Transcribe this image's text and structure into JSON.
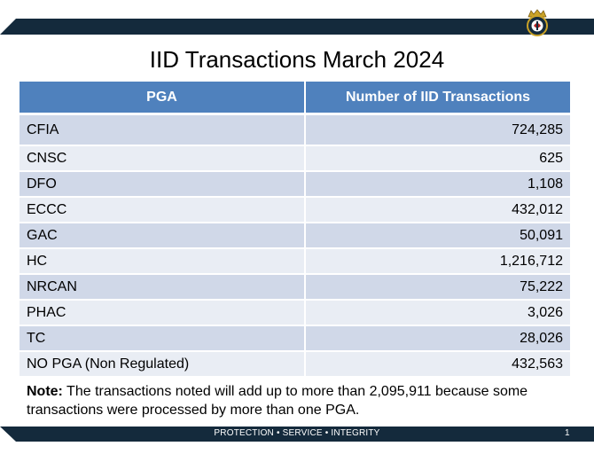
{
  "title": "IID Transactions March 2024",
  "table": {
    "headers": [
      "PGA",
      "Number of IID Transactions"
    ],
    "rows": [
      {
        "pga": "CFIA",
        "count": "724,285"
      },
      {
        "pga": "CNSC",
        "count": "625"
      },
      {
        "pga": "DFO",
        "count": "1,108"
      },
      {
        "pga": "ECCC",
        "count": "432,012"
      },
      {
        "pga": "GAC",
        "count": "50,091"
      },
      {
        "pga": "HC",
        "count": "1,216,712"
      },
      {
        "pga": "NRCAN",
        "count": "75,222"
      },
      {
        "pga": "PHAC",
        "count": "3,026"
      },
      {
        "pga": "TC",
        "count": "28,026"
      },
      {
        "pga": "NO PGA (Non Regulated)",
        "count": "432,563"
      }
    ]
  },
  "note": {
    "label": "Note:",
    "text": " The transactions noted will add up to more than 2,095,911 because some transactions were processed by more than one PGA."
  },
  "footer": {
    "tagline": "PROTECTION • SERVICE • INTEGRITY",
    "page_number": "1"
  },
  "logo": {
    "icon": "cbsa-crest-icon"
  },
  "colors": {
    "band": "#142a3c",
    "header_fill": "#4f81bd",
    "row_odd": "#d0d8e8",
    "row_even": "#e9edf4"
  }
}
